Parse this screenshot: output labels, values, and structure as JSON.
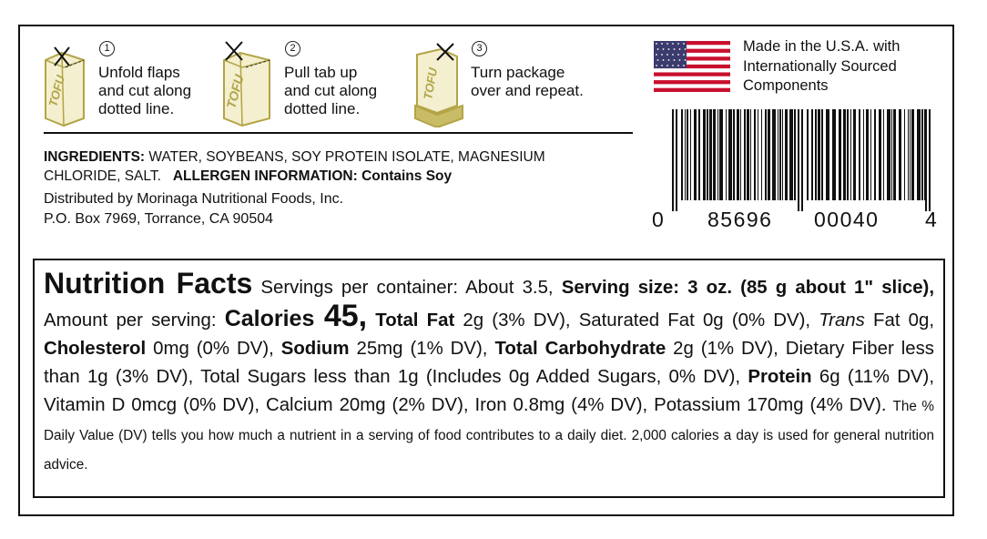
{
  "steps": [
    {
      "number": "1",
      "lines": [
        "Unfold flaps",
        "and cut along",
        "dotted line."
      ]
    },
    {
      "number": "2",
      "lines": [
        "Pull tab up",
        "and cut along",
        "dotted line."
      ]
    },
    {
      "number": "3",
      "lines": [
        "Turn package",
        "over and repeat."
      ]
    }
  ],
  "package_label": "TOFU",
  "origin": [
    "Made in the U.S.A. with",
    "Internationally Sourced",
    "Components"
  ],
  "barcode_digits": [
    "0",
    "85696",
    "00040",
    "4"
  ],
  "ingredients": {
    "label": "INGREDIENTS:",
    "line1": "WATER, SOYBEANS, SOY PROTEIN ISOLATE, MAGNESIUM",
    "line2": "CHLORIDE, SALT.",
    "allergen_label": "ALLERGEN INFORMATION:",
    "allergen": "Contains Soy"
  },
  "distributor": [
    "Distributed by Morinaga Nutritional Foods, Inc.",
    "P.O. Box 7969, Torrance, CA 90504"
  ],
  "nutrition": {
    "segments": [
      {
        "text": "Nutrition Facts",
        "style": "title"
      },
      {
        "text": " Servings per container: About 3.5, ",
        "style": "normal"
      },
      {
        "text": "Serving size: 3 oz. (85 g about 1\" slice),",
        "style": "bold"
      },
      {
        "text": " Amount per serving: ",
        "style": "normal"
      },
      {
        "text": "Calories ",
        "style": "calories"
      },
      {
        "text": "45,",
        "style": "big"
      },
      {
        "text": " Total Fat",
        "style": "bold"
      },
      {
        "text": " 2g (3% DV), Saturated Fat 0g (0% DV), ",
        "style": "normal"
      },
      {
        "text": "Trans",
        "style": "italic"
      },
      {
        "text": " Fat 0g, ",
        "style": "normal"
      },
      {
        "text": "Cholesterol",
        "style": "bold"
      },
      {
        "text": " 0mg (0% DV), ",
        "style": "normal"
      },
      {
        "text": "Sodium",
        "style": "bold"
      },
      {
        "text": " 25mg (1% DV), ",
        "style": "normal"
      },
      {
        "text": "Total Carbohydrate",
        "style": "bold"
      },
      {
        "text": " 2g (1% DV), Dietary Fiber less than 1g (3% DV), Total Sugars less than 1g (Includes 0g Added Sugars, 0% DV), ",
        "style": "normal"
      },
      {
        "text": "Protein",
        "style": "bold"
      },
      {
        "text": " 6g (11% DV), Vitamin D 0mcg (0% DV), Calcium 20mg (2% DV), Iron 0.8mg (4% DV), Potassium 170mg (4% DV). ",
        "style": "normal"
      },
      {
        "text": "The % Daily Value (DV) tells you how much a nutrient in a serving of food contributes to a daily diet. 2,000 calories a day is used for general nutrition advice.",
        "style": "small"
      }
    ]
  }
}
